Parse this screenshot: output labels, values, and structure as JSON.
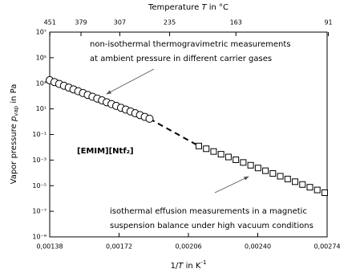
{
  "chart_data": {
    "type": "scatter",
    "y_label": {
      "pre": "Vapor pressure ",
      "var": "p",
      "sub": "vap",
      "post": " in Pa"
    },
    "x_label": {
      "pre": "1/",
      "var": "T",
      "post": " in K",
      "sup": "-1"
    },
    "x2_label": {
      "pre": "Temperature ",
      "var": "T",
      "post": " in °C"
    },
    "compound_label": "[EMIM][Ntf₂]",
    "annotations": [
      {
        "lines": [
          "non-isothermal thermogravimetric measurements",
          "at ambient pressure in different carrier gases"
        ]
      },
      {
        "lines": [
          "isothermal effusion measurements in a magnetic",
          "suspension balance under high vacuum conditions"
        ]
      }
    ],
    "xlim": [
      0.00138,
      0.00274
    ],
    "xticks": [
      {
        "value": 0.00138,
        "label": "0,00138"
      },
      {
        "value": 0.00172,
        "label": "0,00172"
      },
      {
        "value": 0.00206,
        "label": "0,00206"
      },
      {
        "value": 0.0024,
        "label": "0,00240"
      },
      {
        "value": 0.00274,
        "label": "0,00274"
      }
    ],
    "x2ticks": [
      451,
      379,
      307,
      235,
      163,
      91
    ],
    "ylim": [
      1e-09,
      10000000.0
    ],
    "yscale": "log",
    "yticks": [
      {
        "value": 10000000.0,
        "label": "10⁷"
      },
      {
        "value": 100000.0,
        "label": "10⁵"
      },
      {
        "value": 1000,
        "label": "10³"
      },
      {
        "value": 10,
        "label": "10¹"
      },
      {
        "value": 0.1,
        "label": "10⁻¹"
      },
      {
        "value": 0.001,
        "label": "10⁻³"
      },
      {
        "value": 1e-05,
        "label": "10⁻⁵"
      },
      {
        "value": 1e-07,
        "label": "10⁻⁷"
      },
      {
        "value": 1e-09,
        "label": "10⁻⁹"
      }
    ],
    "series": [
      {
        "marker": "circle",
        "color": "#000000",
        "x": [
          0.00138,
          0.0014033,
          0.0014266,
          0.0014499,
          0.0014732,
          0.0014965,
          0.0015198,
          0.0015431,
          0.0015664,
          0.0015897,
          0.001613,
          0.0016363,
          0.0016596,
          0.0016829,
          0.0017062,
          0.0017295,
          0.0017528,
          0.0017761,
          0.0017994,
          0.0018227,
          0.001846,
          0.0018693
        ],
        "values": [
          1738,
          1250,
          898,
          646,
          464,
          334,
          240,
          173,
          124,
          89.1,
          64.1,
          46.1,
          33.1,
          23.8,
          17.1,
          12.3,
          8.85,
          6.36,
          4.58,
          3.29,
          2.37,
          1.7
        ]
      },
      {
        "marker": "square",
        "color": "#000000",
        "x": [
          0.002111,
          0.0021473,
          0.0021836,
          0.0022199,
          0.0022562,
          0.0022925,
          0.0023288,
          0.0023651,
          0.0024014,
          0.0024377,
          0.002474,
          0.0025103,
          0.0025466,
          0.0025829,
          0.0026192,
          0.0026555,
          0.0026918,
          0.0027281
        ],
        "values": [
          0.0126,
          0.00767,
          0.00469,
          0.00286,
          0.00174,
          0.00106,
          0.000649,
          0.000395,
          0.000241,
          0.000147,
          8.97e-05,
          5.47e-05,
          3.34e-05,
          2.04e-05,
          1.24e-05,
          7.57e-06,
          4.62e-06,
          2.82e-06
        ]
      }
    ]
  }
}
